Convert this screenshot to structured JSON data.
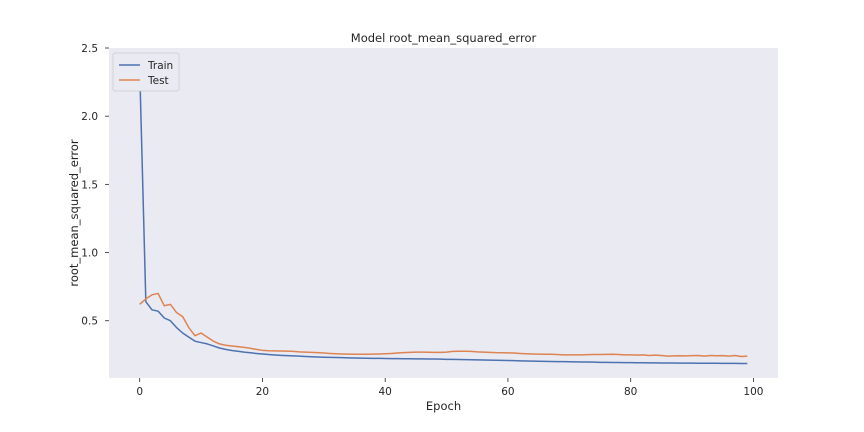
{
  "chart_data": {
    "type": "line",
    "title": "Model root_mean_squared_error",
    "xlabel": "Epoch",
    "ylabel": "root_mean_squared_error",
    "xlim": [
      -5,
      104
    ],
    "ylim": [
      0.08,
      2.5
    ],
    "xticks": [
      0,
      20,
      40,
      60,
      80,
      100
    ],
    "yticks": [
      0.5,
      1.0,
      1.5,
      2.0,
      2.5
    ],
    "xtick_labels": [
      "0",
      "20",
      "40",
      "60",
      "80",
      "100"
    ],
    "ytick_labels": [
      "0.5",
      "1.0",
      "1.5",
      "2.0",
      "2.5"
    ],
    "grid": false,
    "legend_position": "top-left",
    "background": "#eaeaf2",
    "series": [
      {
        "name": "Train",
        "color": "#4c72b0",
        "x": [
          0,
          1,
          2,
          3,
          4,
          5,
          6,
          7,
          8,
          9,
          10,
          11,
          12,
          13,
          14,
          15,
          16,
          17,
          18,
          19,
          20,
          21,
          22,
          23,
          24,
          25,
          26,
          27,
          28,
          29,
          30,
          31,
          32,
          33,
          34,
          35,
          36,
          37,
          38,
          39,
          40,
          41,
          42,
          43,
          44,
          45,
          46,
          47,
          48,
          49,
          50,
          51,
          52,
          53,
          54,
          55,
          56,
          57,
          58,
          59,
          60,
          61,
          62,
          63,
          64,
          65,
          66,
          67,
          68,
          69,
          70,
          71,
          72,
          73,
          74,
          75,
          76,
          77,
          78,
          79,
          80,
          81,
          82,
          83,
          84,
          85,
          86,
          87,
          88,
          89,
          90,
          91,
          92,
          93,
          94,
          95,
          96,
          97,
          98,
          99
        ],
        "y": [
          2.35,
          0.64,
          0.58,
          0.57,
          0.52,
          0.5,
          0.45,
          0.41,
          0.38,
          0.35,
          0.34,
          0.33,
          0.315,
          0.3,
          0.29,
          0.282,
          0.276,
          0.27,
          0.265,
          0.26,
          0.256,
          0.252,
          0.249,
          0.246,
          0.244,
          0.242,
          0.24,
          0.238,
          0.236,
          0.234,
          0.232,
          0.231,
          0.23,
          0.229,
          0.228,
          0.227,
          0.226,
          0.225,
          0.224,
          0.224,
          0.223,
          0.222,
          0.222,
          0.221,
          0.221,
          0.22,
          0.22,
          0.219,
          0.219,
          0.218,
          0.217,
          0.217,
          0.216,
          0.215,
          0.214,
          0.213,
          0.212,
          0.211,
          0.21,
          0.209,
          0.208,
          0.207,
          0.206,
          0.205,
          0.204,
          0.203,
          0.202,
          0.201,
          0.2,
          0.2,
          0.199,
          0.198,
          0.197,
          0.197,
          0.196,
          0.195,
          0.195,
          0.194,
          0.194,
          0.193,
          0.193,
          0.192,
          0.192,
          0.191,
          0.191,
          0.19,
          0.19,
          0.19,
          0.189,
          0.189,
          0.189,
          0.188,
          0.188,
          0.188,
          0.188,
          0.187,
          0.187,
          0.187,
          0.186,
          0.186
        ]
      },
      {
        "name": "Test",
        "color": "#dd8452",
        "x": [
          0,
          1,
          2,
          3,
          4,
          5,
          6,
          7,
          8,
          9,
          10,
          11,
          12,
          13,
          14,
          15,
          16,
          17,
          18,
          19,
          20,
          21,
          22,
          23,
          24,
          25,
          26,
          27,
          28,
          29,
          30,
          31,
          32,
          33,
          34,
          35,
          36,
          37,
          38,
          39,
          40,
          41,
          42,
          43,
          44,
          45,
          46,
          47,
          48,
          49,
          50,
          51,
          52,
          53,
          54,
          55,
          56,
          57,
          58,
          59,
          60,
          61,
          62,
          63,
          64,
          65,
          66,
          67,
          68,
          69,
          70,
          71,
          72,
          73,
          74,
          75,
          76,
          77,
          78,
          79,
          80,
          81,
          82,
          83,
          84,
          85,
          86,
          87,
          88,
          89,
          90,
          91,
          92,
          93,
          94,
          95,
          96,
          97,
          98,
          99
        ],
        "y": [
          0.62,
          0.66,
          0.69,
          0.7,
          0.61,
          0.62,
          0.56,
          0.53,
          0.45,
          0.39,
          0.41,
          0.38,
          0.35,
          0.33,
          0.32,
          0.315,
          0.31,
          0.305,
          0.298,
          0.29,
          0.283,
          0.28,
          0.279,
          0.278,
          0.277,
          0.275,
          0.272,
          0.27,
          0.268,
          0.266,
          0.263,
          0.26,
          0.258,
          0.256,
          0.255,
          0.254,
          0.254,
          0.254,
          0.255,
          0.256,
          0.258,
          0.26,
          0.263,
          0.266,
          0.268,
          0.27,
          0.27,
          0.269,
          0.268,
          0.268,
          0.27,
          0.275,
          0.276,
          0.276,
          0.275,
          0.272,
          0.27,
          0.268,
          0.266,
          0.265,
          0.264,
          0.263,
          0.26,
          0.258,
          0.256,
          0.255,
          0.254,
          0.254,
          0.252,
          0.25,
          0.25,
          0.25,
          0.25,
          0.251,
          0.252,
          0.252,
          0.253,
          0.254,
          0.252,
          0.25,
          0.25,
          0.248,
          0.25,
          0.245,
          0.248,
          0.245,
          0.24,
          0.242,
          0.243,
          0.242,
          0.244,
          0.245,
          0.24,
          0.245,
          0.243,
          0.244,
          0.24,
          0.245,
          0.238,
          0.24
        ]
      }
    ]
  }
}
